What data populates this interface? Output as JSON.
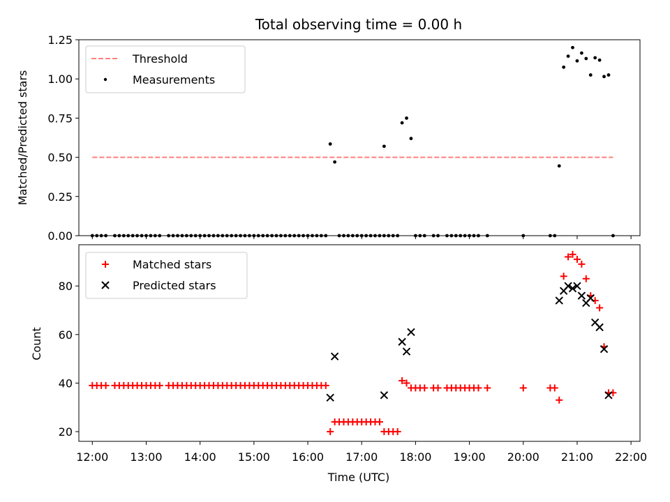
{
  "chart_data": [
    {
      "type": "scatter",
      "title": "Total observing time = 0.00 h",
      "xlabel": "",
      "ylabel": "Matched/Predicted stars",
      "xlim": [
        "11:45",
        "22:10"
      ],
      "ylim": [
        0,
        1.25
      ],
      "yticks": [
        "0.00",
        "0.25",
        "0.50",
        "0.75",
        "1.00",
        "1.25"
      ],
      "legend_position": "top-left",
      "threshold": {
        "name": "Threshold",
        "value": 0.5,
        "x_range": [
          "12:00",
          "21:40"
        ],
        "color": "#ff7f7f",
        "style": "dashed"
      },
      "series": [
        {
          "name": "Measurements",
          "color": "#000000",
          "marker": "dot",
          "points": [
            [
              "12:00",
              0
            ],
            [
              "12:05",
              0
            ],
            [
              "12:10",
              0
            ],
            [
              "12:15",
              0
            ],
            [
              "12:25",
              0
            ],
            [
              "12:30",
              0
            ],
            [
              "12:35",
              0
            ],
            [
              "12:40",
              0
            ],
            [
              "12:45",
              0
            ],
            [
              "12:50",
              0
            ],
            [
              "12:55",
              0
            ],
            [
              "13:00",
              0
            ],
            [
              "13:05",
              0
            ],
            [
              "13:10",
              0
            ],
            [
              "13:15",
              0
            ],
            [
              "13:25",
              0
            ],
            [
              "13:30",
              0
            ],
            [
              "13:35",
              0
            ],
            [
              "13:40",
              0
            ],
            [
              "13:45",
              0
            ],
            [
              "13:50",
              0
            ],
            [
              "13:55",
              0
            ],
            [
              "14:00",
              0
            ],
            [
              "14:05",
              0
            ],
            [
              "14:10",
              0
            ],
            [
              "14:15",
              0
            ],
            [
              "14:20",
              0
            ],
            [
              "14:25",
              0
            ],
            [
              "14:30",
              0
            ],
            [
              "14:35",
              0
            ],
            [
              "14:40",
              0
            ],
            [
              "14:45",
              0
            ],
            [
              "14:50",
              0
            ],
            [
              "14:55",
              0
            ],
            [
              "15:00",
              0
            ],
            [
              "15:05",
              0
            ],
            [
              "15:10",
              0
            ],
            [
              "15:15",
              0
            ],
            [
              "15:20",
              0
            ],
            [
              "15:25",
              0
            ],
            [
              "15:30",
              0
            ],
            [
              "15:35",
              0
            ],
            [
              "15:40",
              0
            ],
            [
              "15:45",
              0
            ],
            [
              "15:50",
              0
            ],
            [
              "15:55",
              0
            ],
            [
              "16:00",
              0
            ],
            [
              "16:05",
              0
            ],
            [
              "16:10",
              0
            ],
            [
              "16:15",
              0
            ],
            [
              "16:20",
              0
            ],
            [
              "16:25",
              0.585
            ],
            [
              "16:30",
              0.47
            ],
            [
              "16:35",
              0
            ],
            [
              "16:40",
              0
            ],
            [
              "16:45",
              0
            ],
            [
              "16:50",
              0
            ],
            [
              "16:55",
              0
            ],
            [
              "17:00",
              0
            ],
            [
              "17:05",
              0
            ],
            [
              "17:10",
              0
            ],
            [
              "17:15",
              0
            ],
            [
              "17:20",
              0
            ],
            [
              "17:25",
              0
            ],
            [
              "17:25",
              0.57
            ],
            [
              "17:30",
              0
            ],
            [
              "17:35",
              0
            ],
            [
              "17:40",
              0
            ],
            [
              "17:45",
              0.72
            ],
            [
              "17:50",
              0.75
            ],
            [
              "17:55",
              0.62
            ],
            [
              "18:00",
              0
            ],
            [
              "18:05",
              0
            ],
            [
              "18:10",
              0
            ],
            [
              "18:20",
              0
            ],
            [
              "18:25",
              0
            ],
            [
              "18:35",
              0
            ],
            [
              "18:40",
              0
            ],
            [
              "18:45",
              0
            ],
            [
              "18:50",
              0
            ],
            [
              "18:55",
              0
            ],
            [
              "19:00",
              0
            ],
            [
              "19:05",
              0
            ],
            [
              "19:10",
              0
            ],
            [
              "19:20",
              0
            ],
            [
              "20:00",
              0
            ],
            [
              "20:30",
              0
            ],
            [
              "20:35",
              0
            ],
            [
              "20:40",
              0.445
            ],
            [
              "20:45",
              1.075
            ],
            [
              "20:50",
              1.145
            ],
            [
              "20:55",
              1.2
            ],
            [
              "21:00",
              1.115
            ],
            [
              "21:05",
              1.165
            ],
            [
              "21:10",
              1.13
            ],
            [
              "21:15",
              1.025
            ],
            [
              "21:20",
              1.135
            ],
            [
              "21:25",
              1.12
            ],
            [
              "21:30",
              1.015
            ],
            [
              "21:35",
              1.025
            ],
            [
              "21:40",
              0
            ]
          ]
        }
      ]
    },
    {
      "type": "scatter",
      "title": "",
      "xlabel": "Time (UTC)",
      "ylabel": "Count",
      "xlim": [
        "11:45",
        "22:10"
      ],
      "ylim": [
        16,
        97
      ],
      "yticks": [
        "20",
        "40",
        "60",
        "80"
      ],
      "xticks": [
        "12:00",
        "13:00",
        "14:00",
        "15:00",
        "16:00",
        "17:00",
        "18:00",
        "19:00",
        "20:00",
        "21:00",
        "22:00"
      ],
      "legend_position": "top-left",
      "series": [
        {
          "name": "Matched stars",
          "color": "#ff0000",
          "marker": "plus",
          "points": [
            [
              "12:00",
              39
            ],
            [
              "12:05",
              39
            ],
            [
              "12:10",
              39
            ],
            [
              "12:15",
              39
            ],
            [
              "12:25",
              39
            ],
            [
              "12:30",
              39
            ],
            [
              "12:35",
              39
            ],
            [
              "12:40",
              39
            ],
            [
              "12:45",
              39
            ],
            [
              "12:50",
              39
            ],
            [
              "12:55",
              39
            ],
            [
              "13:00",
              39
            ],
            [
              "13:05",
              39
            ],
            [
              "13:10",
              39
            ],
            [
              "13:15",
              39
            ],
            [
              "13:25",
              39
            ],
            [
              "13:30",
              39
            ],
            [
              "13:35",
              39
            ],
            [
              "13:40",
              39
            ],
            [
              "13:45",
              39
            ],
            [
              "13:50",
              39
            ],
            [
              "13:55",
              39
            ],
            [
              "14:00",
              39
            ],
            [
              "14:05",
              39
            ],
            [
              "14:10",
              39
            ],
            [
              "14:15",
              39
            ],
            [
              "14:20",
              39
            ],
            [
              "14:25",
              39
            ],
            [
              "14:30",
              39
            ],
            [
              "14:35",
              39
            ],
            [
              "14:40",
              39
            ],
            [
              "14:45",
              39
            ],
            [
              "14:50",
              39
            ],
            [
              "14:55",
              39
            ],
            [
              "15:00",
              39
            ],
            [
              "15:05",
              39
            ],
            [
              "15:10",
              39
            ],
            [
              "15:15",
              39
            ],
            [
              "15:20",
              39
            ],
            [
              "15:25",
              39
            ],
            [
              "15:30",
              39
            ],
            [
              "15:35",
              39
            ],
            [
              "15:40",
              39
            ],
            [
              "15:45",
              39
            ],
            [
              "15:50",
              39
            ],
            [
              "15:55",
              39
            ],
            [
              "16:00",
              39
            ],
            [
              "16:05",
              39
            ],
            [
              "16:10",
              39
            ],
            [
              "16:15",
              39
            ],
            [
              "16:20",
              39
            ],
            [
              "16:25",
              20
            ],
            [
              "16:30",
              24
            ],
            [
              "16:35",
              24
            ],
            [
              "16:40",
              24
            ],
            [
              "16:45",
              24
            ],
            [
              "16:50",
              24
            ],
            [
              "16:55",
              24
            ],
            [
              "17:00",
              24
            ],
            [
              "17:05",
              24
            ],
            [
              "17:10",
              24
            ],
            [
              "17:15",
              24
            ],
            [
              "17:20",
              24
            ],
            [
              "17:25",
              20
            ],
            [
              "17:30",
              20
            ],
            [
              "17:35",
              20
            ],
            [
              "17:40",
              20
            ],
            [
              "17:45",
              41
            ],
            [
              "17:50",
              40
            ],
            [
              "17:55",
              38
            ],
            [
              "18:00",
              38
            ],
            [
              "18:05",
              38
            ],
            [
              "18:10",
              38
            ],
            [
              "18:20",
              38
            ],
            [
              "18:25",
              38
            ],
            [
              "18:35",
              38
            ],
            [
              "18:40",
              38
            ],
            [
              "18:45",
              38
            ],
            [
              "18:50",
              38
            ],
            [
              "18:55",
              38
            ],
            [
              "19:00",
              38
            ],
            [
              "19:05",
              38
            ],
            [
              "19:10",
              38
            ],
            [
              "19:20",
              38
            ],
            [
              "20:00",
              38
            ],
            [
              "20:30",
              38
            ],
            [
              "20:35",
              38
            ],
            [
              "20:40",
              33
            ],
            [
              "20:45",
              84
            ],
            [
              "20:50",
              92
            ],
            [
              "20:55",
              93
            ],
            [
              "21:00",
              91
            ],
            [
              "21:05",
              89
            ],
            [
              "21:10",
              83
            ],
            [
              "21:15",
              76
            ],
            [
              "21:20",
              74
            ],
            [
              "21:25",
              71
            ],
            [
              "21:30",
              55
            ],
            [
              "21:35",
              36
            ],
            [
              "21:40",
              36
            ]
          ]
        },
        {
          "name": "Predicted stars",
          "color": "#000000",
          "marker": "x",
          "points": [
            [
              "16:25",
              34
            ],
            [
              "16:30",
              51
            ],
            [
              "17:25",
              35
            ],
            [
              "17:45",
              57
            ],
            [
              "17:50",
              53
            ],
            [
              "17:55",
              61
            ],
            [
              "20:40",
              74
            ],
            [
              "20:45",
              78
            ],
            [
              "20:50",
              80
            ],
            [
              "20:55",
              79
            ],
            [
              "21:00",
              80
            ],
            [
              "21:05",
              76
            ],
            [
              "21:10",
              73
            ],
            [
              "21:15",
              75
            ],
            [
              "21:20",
              65
            ],
            [
              "21:25",
              63
            ],
            [
              "21:30",
              54
            ],
            [
              "21:35",
              35
            ]
          ]
        }
      ]
    }
  ]
}
